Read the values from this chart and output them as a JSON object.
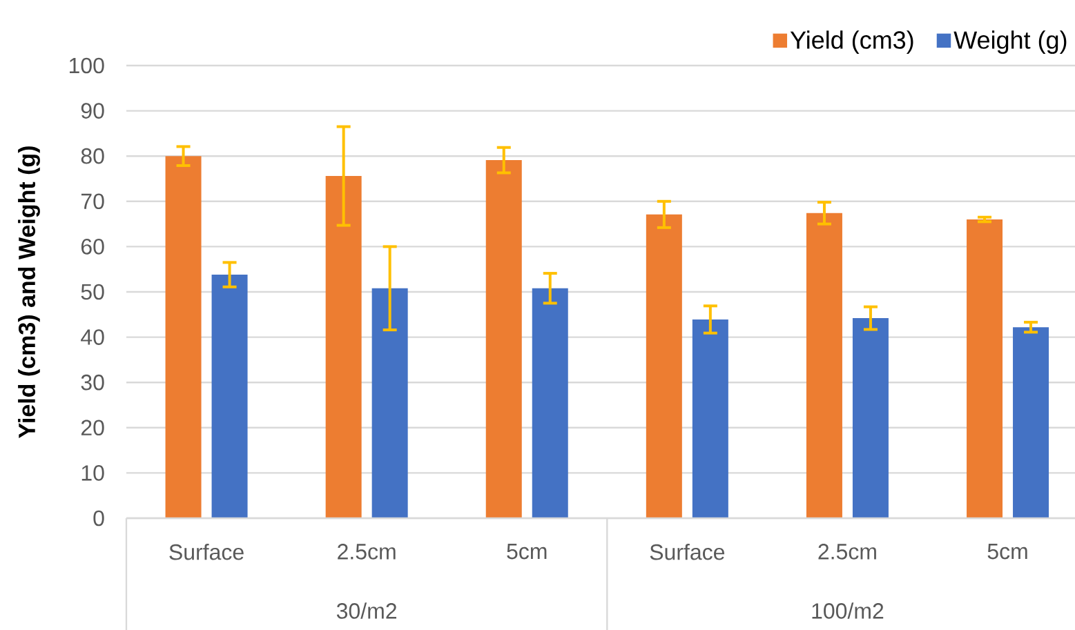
{
  "chart_data": {
    "type": "bar",
    "ylabel": "Yield (cm3) and Weight (g)",
    "categories": [
      "Surface",
      "2.5cm",
      "5cm",
      "Surface",
      "2.5cm",
      "5cm"
    ],
    "series": [
      {
        "name": "Yield (cm3)",
        "color": "#ed7d31",
        "values": [
          80.0,
          75.6,
          79.1,
          67.1,
          67.4,
          66.0
        ],
        "errors": [
          2.1,
          10.9,
          2.8,
          2.9,
          2.4,
          0.5
        ]
      },
      {
        "name": "Weight (g)",
        "color": "#4472c4",
        "values": [
          53.8,
          50.8,
          50.8,
          43.9,
          44.2,
          42.2
        ],
        "errors": [
          2.7,
          9.2,
          3.3,
          3.0,
          2.5,
          1.1
        ]
      }
    ],
    "annotations": [
      "30/m2",
      "100/m2"
    ],
    "ylim": [
      0,
      100
    ],
    "yticks": [
      0,
      10,
      20,
      30,
      40,
      50,
      60,
      70,
      80,
      90,
      100
    ],
    "grid": "y",
    "legend": "top right"
  }
}
